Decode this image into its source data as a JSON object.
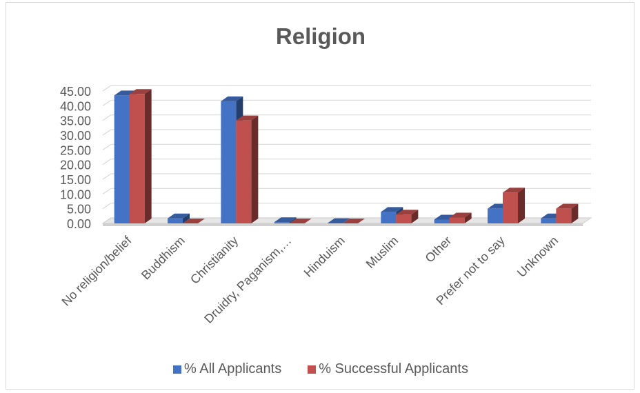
{
  "chart_data": {
    "type": "bar",
    "title": "Religion",
    "categories": [
      "No religion/belief",
      "Buddhism",
      "Christianity",
      "Druidry, Paganism,…",
      "Hinduism",
      "Muslim",
      "Other",
      "Prefer not to say",
      "Unknown"
    ],
    "series": [
      {
        "name": "% All Applicants",
        "values": [
          43.5,
          1.7,
          41.5,
          0.4,
          0.1,
          3.9,
          1.3,
          5.0,
          1.7
        ],
        "color": "#4472c4"
      },
      {
        "name": "% Successful Applicants",
        "values": [
          44.0,
          0.0,
          35.0,
          0.0,
          0.0,
          3.0,
          2.0,
          10.5,
          5.0
        ],
        "color": "#c0504d"
      }
    ],
    "y_ticks": [
      "0.00",
      "5.00",
      "10.00",
      "15.00",
      "20.00",
      "25.00",
      "30.00",
      "35.00",
      "40.00",
      "45.00"
    ],
    "ylim": [
      0,
      45
    ],
    "grid": true,
    "legend_position": "bottom",
    "three_d": true
  }
}
